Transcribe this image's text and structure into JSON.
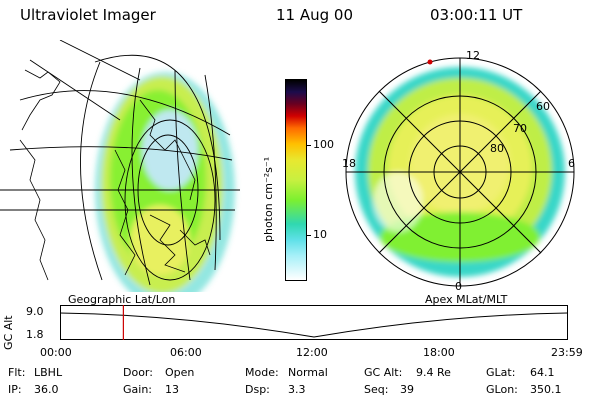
{
  "header": {
    "instrument": "Ultraviolet Imager",
    "date": "11 Aug 00",
    "time": "03:00:11  UT"
  },
  "colorbar": {
    "unit_label": "photon cm⁻²s⁻¹",
    "tick_100": "100",
    "tick_10": "10"
  },
  "left_panel": {
    "caption": "Geographic Lat/Lon"
  },
  "right_panel": {
    "caption": "Apex  MLat/MLT",
    "mlt_12": "12",
    "mlt_18": "18",
    "mlt_6": "6",
    "mlt_0": "0",
    "lat_60": "60",
    "lat_70": "70",
    "lat_80": "80"
  },
  "altitude_plot": {
    "y_label": "GC Alt",
    "y_max": "9.0",
    "y_min": "1.8",
    "x_ticks": [
      "00:00",
      "06:00",
      "12:00",
      "18:00",
      "23:59"
    ],
    "current_time_hours": 3.0
  },
  "status": {
    "flt_label": "Flt:",
    "flt_value": "LBHL",
    "ip_label": "IP:",
    "ip_value": "36.0",
    "door_label": "Door:",
    "door_value": "Open",
    "gain_label": "Gain:",
    "gain_value": "13",
    "mode_label": "Mode:",
    "mode_value": "Normal",
    "dsp_label": "Dsp:",
    "dsp_value": "3.3",
    "gcalt_label": "GC Alt:",
    "gcalt_value": "9.4 Re",
    "seq_label": "Seq:",
    "seq_value": "39",
    "glat_label": "GLat:",
    "glat_value": "64.1",
    "glon_label": "GLon:",
    "glon_value": "350.1"
  },
  "colors": {
    "background": "#ffffff",
    "aurora_peak": "#7fff2a",
    "aurora_mid": "#d8f04a",
    "aurora_low": "#38d7c8",
    "cursor_red": "#cc0000"
  }
}
